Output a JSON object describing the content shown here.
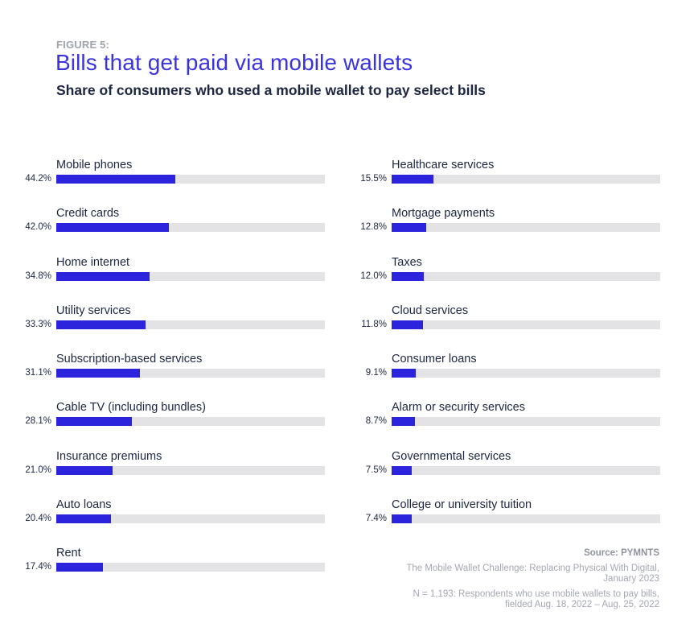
{
  "header": {
    "figure_label": "FIGURE 5:",
    "title": "Bills that get paid via mobile wallets",
    "subtitle": "Share of consumers who used a mobile wallet to pay select bills"
  },
  "colors": {
    "bar": "#2b24dc",
    "track": "#e3e3e5",
    "title": "#3a33e0",
    "text": "#1c2640"
  },
  "chart_data": {
    "type": "bar",
    "orientation": "horizontal",
    "title": "Bills that get paid via mobile wallets",
    "subtitle": "Share of consumers who used a mobile wallet to pay select bills",
    "xlabel": "",
    "ylabel": "",
    "xlim": [
      0,
      100
    ],
    "unit": "%",
    "grid": false,
    "legend": null,
    "categories": [
      "Mobile phones",
      "Credit cards",
      "Home internet",
      "Utility services",
      "Subscription-based services",
      "Cable TV (including bundles)",
      "Insurance premiums",
      "Auto loans",
      "Rent",
      "Healthcare services",
      "Mortgage payments",
      "Taxes",
      "Cloud services",
      "Consumer loans",
      "Alarm or security services",
      "Governmental services",
      "College or university tuition"
    ],
    "values": [
      44.2,
      42.0,
      34.8,
      33.3,
      31.1,
      28.1,
      21.0,
      20.4,
      17.4,
      15.5,
      12.8,
      12.0,
      11.8,
      9.1,
      8.7,
      7.5,
      7.4
    ]
  },
  "left_column": [
    {
      "label": "Mobile phones",
      "value": "44.2%",
      "pct": 44.2
    },
    {
      "label": "Credit cards",
      "value": "42.0%",
      "pct": 42.0
    },
    {
      "label": "Home internet",
      "value": "34.8%",
      "pct": 34.8
    },
    {
      "label": "Utility services",
      "value": "33.3%",
      "pct": 33.3
    },
    {
      "label": "Subscription-based services",
      "value": "31.1%",
      "pct": 31.1
    },
    {
      "label": "Cable TV (including bundles)",
      "value": "28.1%",
      "pct": 28.1
    },
    {
      "label": "Insurance premiums",
      "value": "21.0%",
      "pct": 21.0
    },
    {
      "label": "Auto loans",
      "value": "20.4%",
      "pct": 20.4
    },
    {
      "label": "Rent",
      "value": "17.4%",
      "pct": 17.4
    }
  ],
  "right_column": [
    {
      "label": "Healthcare services",
      "value": "15.5%",
      "pct": 15.5
    },
    {
      "label": "Mortgage payments",
      "value": "12.8%",
      "pct": 12.8
    },
    {
      "label": "Taxes",
      "value": "12.0%",
      "pct": 12.0
    },
    {
      "label": "Cloud services",
      "value": "11.8%",
      "pct": 11.8
    },
    {
      "label": "Consumer loans",
      "value": "9.1%",
      "pct": 9.1
    },
    {
      "label": "Alarm or security services",
      "value": "8.7%",
      "pct": 8.7
    },
    {
      "label": "Governmental services",
      "value": "7.5%",
      "pct": 7.5
    },
    {
      "label": "College or university tuition",
      "value": "7.4%",
      "pct": 7.4
    }
  ],
  "source": {
    "heading": "Source: PYMNTS",
    "publication_line1": "The Mobile Wallet Challenge: Replacing Physical With Digital,",
    "publication_line2": "January 2023",
    "sample_line1": "N = 1,193: Respondents who use mobile wallets to pay bills,",
    "sample_line2": "fielded Aug. 18, 2022 – Aug. 25, 2022"
  }
}
